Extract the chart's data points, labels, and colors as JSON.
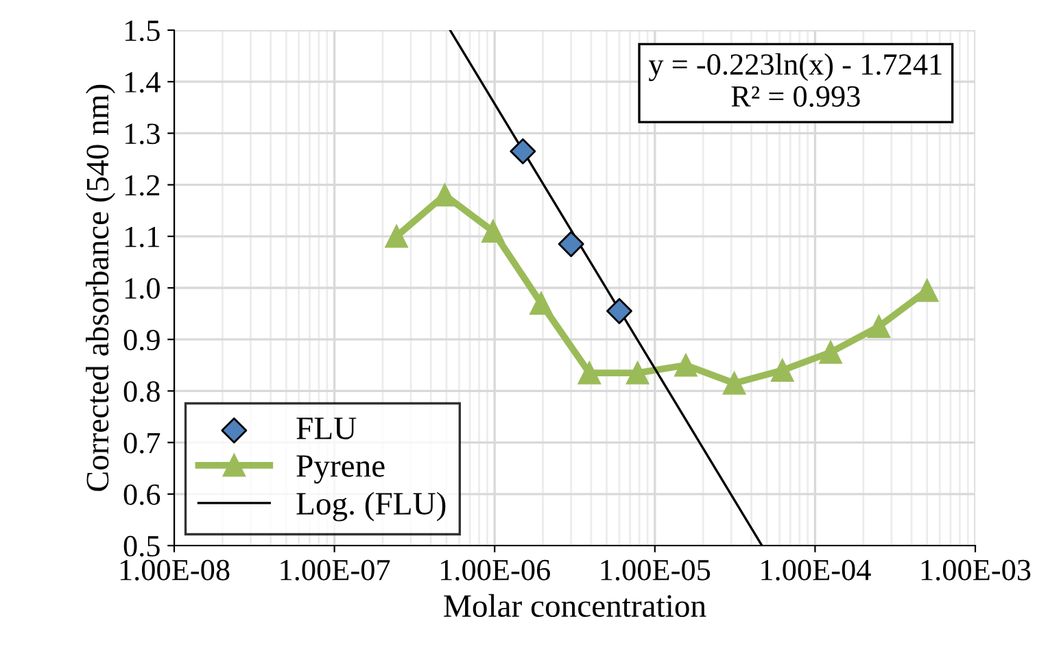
{
  "chart_data": {
    "type": "scatter",
    "xlabel": "Molar concentration",
    "ylabel": "Corrected absorbance (540 nm)",
    "log": "x",
    "xlim": [
      1e-08,
      0.001
    ],
    "ylim": [
      0.5,
      1.5
    ],
    "xticks": [
      {
        "value": 1e-08,
        "label": "1.00E-08"
      },
      {
        "value": 1e-07,
        "label": "1.00E-07"
      },
      {
        "value": 1e-06,
        "label": "1.00E-06"
      },
      {
        "value": 1e-05,
        "label": "1.00E-05"
      },
      {
        "value": 0.0001,
        "label": "1.00E-04"
      },
      {
        "value": 0.001,
        "label": "1.00E-03"
      }
    ],
    "yticks": [
      0.5,
      0.6,
      0.7,
      0.8,
      0.9,
      {
        "value": 1,
        "label": "1.0"
      },
      1.1,
      1.2,
      1.3,
      1.4,
      1.5
    ],
    "grid": true,
    "legend": "bottom left",
    "annotations": [
      "y = -0.223ln(x) - 1.7241\nR² = 0.993"
    ],
    "series": [
      {
        "name": "FLU",
        "marker": "diamond",
        "color": "#4f81bd",
        "x": [
          1.5e-06,
          3e-06,
          6e-06
        ],
        "values": [
          1.265,
          1.085,
          0.955
        ]
      },
      {
        "name": "Pyrene",
        "type": "line",
        "marker": "triangle",
        "color": "#9bbb59",
        "x": [
          2.44e-07,
          4.88e-07,
          9.77e-07,
          1.95e-06,
          3.9e-06,
          7.8e-06,
          1.56e-05,
          3.13e-05,
          6.25e-05,
          0.000125,
          0.00025,
          0.0005
        ],
        "values": [
          1.1,
          1.18,
          1.11,
          0.97,
          0.835,
          0.835,
          0.85,
          0.815,
          0.84,
          0.875,
          0.925,
          0.995
        ]
      },
      {
        "name": "Log. (FLU)",
        "type": "line",
        "marker": "none",
        "color": "#000000",
        "x": [
          5.27e-07,
          4.66e-05
        ],
        "values": [
          1.5,
          0.5
        ]
      }
    ]
  }
}
